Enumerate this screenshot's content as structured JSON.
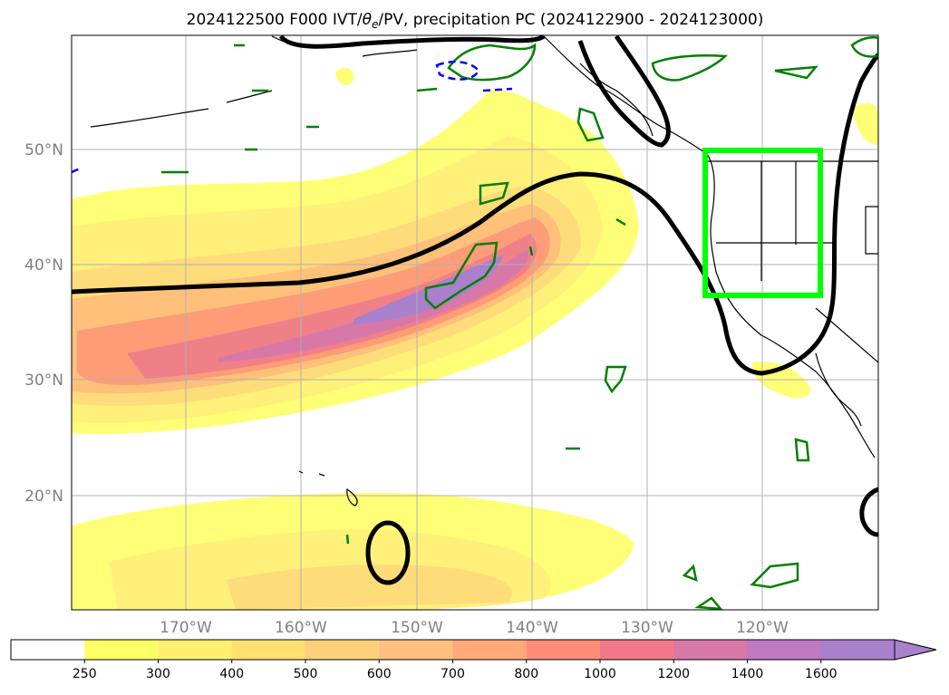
{
  "map": {
    "title_prefix": "2024122500 F000 IVT/",
    "title_theta": "θ",
    "title_sub": "e",
    "title_suffix": "/PV, precipitation PC (2024122900 - 2024123000)",
    "lat_labels": [
      "50°N",
      "40°N",
      "30°N",
      "20°N"
    ],
    "lon_labels": [
      "170°W",
      "160°W",
      "150°W",
      "140°W",
      "130°W",
      "120°W"
    ],
    "highlight_box_color": "#00ff00",
    "contour_color": "#000000",
    "precip_contour_color": "#008000",
    "negative_contour_color": "#0000ff",
    "gridlines": true
  },
  "colorbar": {
    "levels": [
      "250",
      "300",
      "400",
      "500",
      "600",
      "700",
      "800",
      "1000",
      "1200",
      "1400",
      "1600"
    ],
    "colors": [
      "#ffffff",
      "#ffff66",
      "#fff070",
      "#ffe070",
      "#ffd07a",
      "#ffc080",
      "#ffaa78",
      "#ff8c78",
      "#f07888",
      "#d878a8",
      "#c078c0",
      "#a880cc"
    ],
    "extend": "max"
  }
}
